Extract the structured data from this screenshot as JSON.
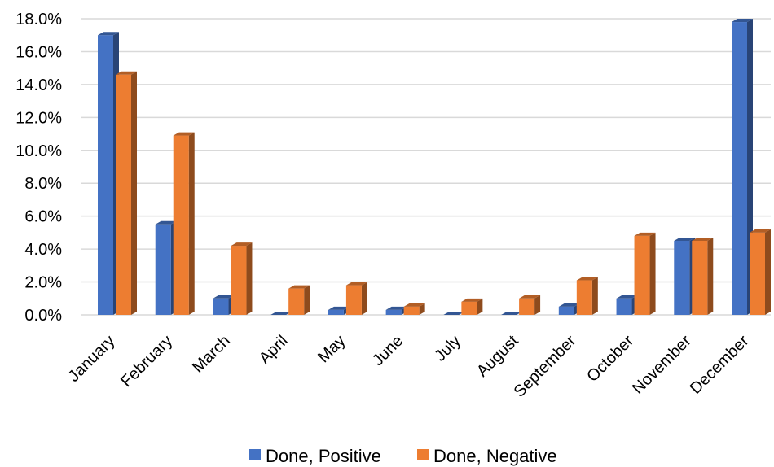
{
  "chart_data": {
    "type": "bar",
    "style": "3d-clustered-column",
    "categories": [
      "January",
      "February",
      "March",
      "April",
      "May",
      "June",
      "July",
      "August",
      "September",
      "October",
      "November",
      "December"
    ],
    "series": [
      {
        "name": "Done, Positive",
        "color": "#4472C4",
        "values": [
          17.0,
          5.5,
          1.0,
          0.0,
          0.3,
          0.3,
          0.0,
          0.0,
          0.5,
          1.0,
          4.5,
          17.8
        ]
      },
      {
        "name": "Done, Negative",
        "color": "#ED7D31",
        "values": [
          14.6,
          10.9,
          4.2,
          1.6,
          1.8,
          0.5,
          0.8,
          1.0,
          2.1,
          4.8,
          4.5,
          5.0
        ]
      }
    ],
    "yticks": [
      "0.0%",
      "2.0%",
      "4.0%",
      "6.0%",
      "8.0%",
      "10.0%",
      "12.0%",
      "14.0%",
      "16.0%",
      "18.0%"
    ],
    "ylim": [
      0,
      18
    ],
    "grid": true,
    "legend_position": "bottom"
  }
}
